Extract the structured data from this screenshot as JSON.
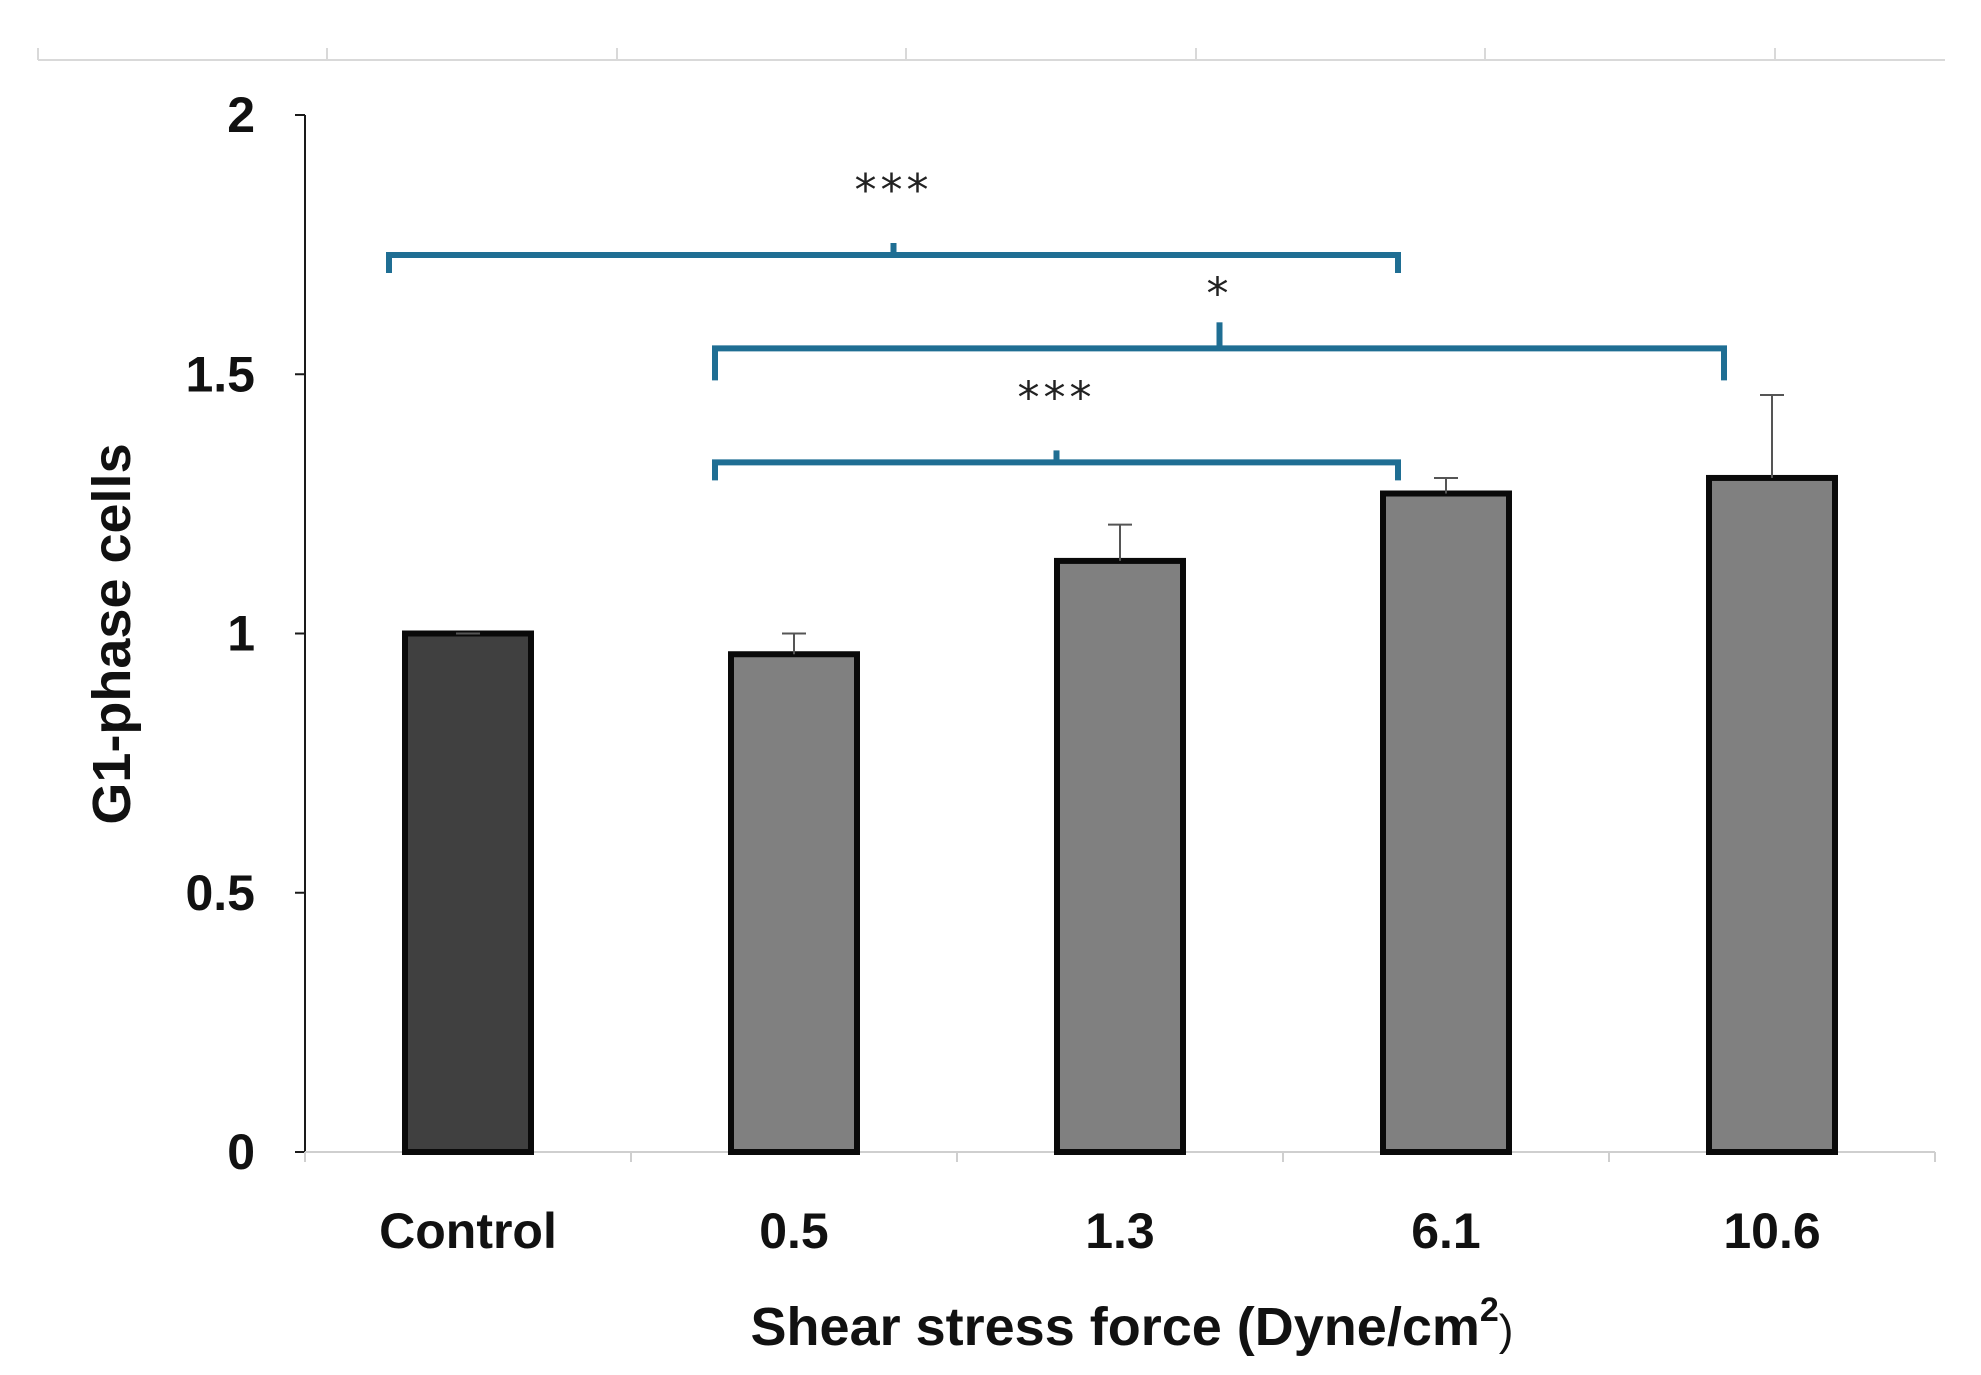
{
  "chart_data": {
    "type": "bar",
    "title": "",
    "xlabel_main": "Shear stress force (Dyne/cm",
    "xlabel_sup": "2",
    "xlabel_close": ")",
    "ylabel": "G1-phase cells",
    "ylim": [
      0,
      2
    ],
    "yticks": [
      "0",
      "0.5",
      "1",
      "1.5",
      "2"
    ],
    "categories": [
      "Control",
      "0.5",
      "1.3",
      "6.1",
      "10.6"
    ],
    "values": [
      1.0,
      0.96,
      1.14,
      1.27,
      1.3
    ],
    "errors": [
      0.0,
      0.04,
      0.07,
      0.03,
      0.16
    ],
    "bar_colors": [
      "#404040",
      "#808080",
      "#808080",
      "#808080",
      "#808080"
    ],
    "bar_edge_color": "#0a0a0a",
    "bracket_color": "#1f6e93",
    "significance": [
      {
        "from": 0,
        "to": 3,
        "y": 1.73,
        "label": "***"
      },
      {
        "from": 1,
        "to": 4,
        "y": 1.55,
        "label": "*"
      },
      {
        "from": 1,
        "to": 3,
        "y": 1.33,
        "label": "***"
      }
    ]
  }
}
